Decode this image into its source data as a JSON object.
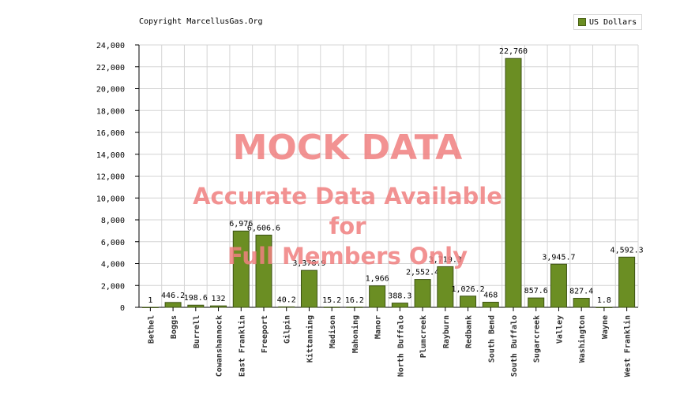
{
  "copyright": "Copyright MarcellusGas.Org",
  "legend_label": "US Dollars",
  "watermark": {
    "line1": "MOCK DATA",
    "line2": "Accurate Data Available",
    "line3": "for",
    "line4": "Full Members Only"
  },
  "colors": {
    "bar": "#6b8e23",
    "bar_stroke": "#3d5214",
    "grid": "#d4d4d4",
    "watermark": "#f08080"
  },
  "chart_data": {
    "type": "bar",
    "categories": [
      "Bethel",
      "Boggs",
      "Burrell",
      "Cowanshannock",
      "East Franklin",
      "Freeport",
      "Gilpin",
      "Kittanning",
      "Madison",
      "Mahoning",
      "Manor",
      "North Buffalo",
      "Plumcreek",
      "Rayburn",
      "Redbank",
      "South Bend",
      "South Buffalo",
      "Sugarcreek",
      "Valley",
      "Washington",
      "Wayne",
      "West Franklin"
    ],
    "series": [
      {
        "name": "US Dollars",
        "values": [
          1,
          446.2,
          198.6,
          132,
          6976,
          6606.6,
          40.2,
          3378.9,
          15.2,
          16.2,
          1966,
          388.3,
          2552.4,
          3719.3,
          1026.2,
          468,
          22760,
          857.6,
          3945.7,
          827.4,
          1.8,
          4592.3
        ],
        "labels": [
          "1",
          "446.2",
          "198.6",
          "132",
          "6,976",
          "6,606.6",
          "40.2",
          "3,378.9",
          "15.2",
          "16.2",
          "1,966",
          "388.3",
          "2,552.4",
          "3,719.3",
          "1,026.2",
          "468",
          "22,760",
          "857.6",
          "3,945.7",
          "827.4",
          "1.8",
          "4,592.3"
        ]
      }
    ],
    "ylim": [
      0,
      24000
    ],
    "yticks": [
      0,
      2000,
      4000,
      6000,
      8000,
      10000,
      12000,
      14000,
      16000,
      18000,
      20000,
      22000,
      24000
    ],
    "ytick_labels": [
      "0",
      "2,000",
      "4,000",
      "6,000",
      "8,000",
      "10,000",
      "12,000",
      "14,000",
      "16,000",
      "18,000",
      "20,000",
      "22,000",
      "24,000"
    ],
    "grid": true,
    "legend_position": "top-right"
  }
}
